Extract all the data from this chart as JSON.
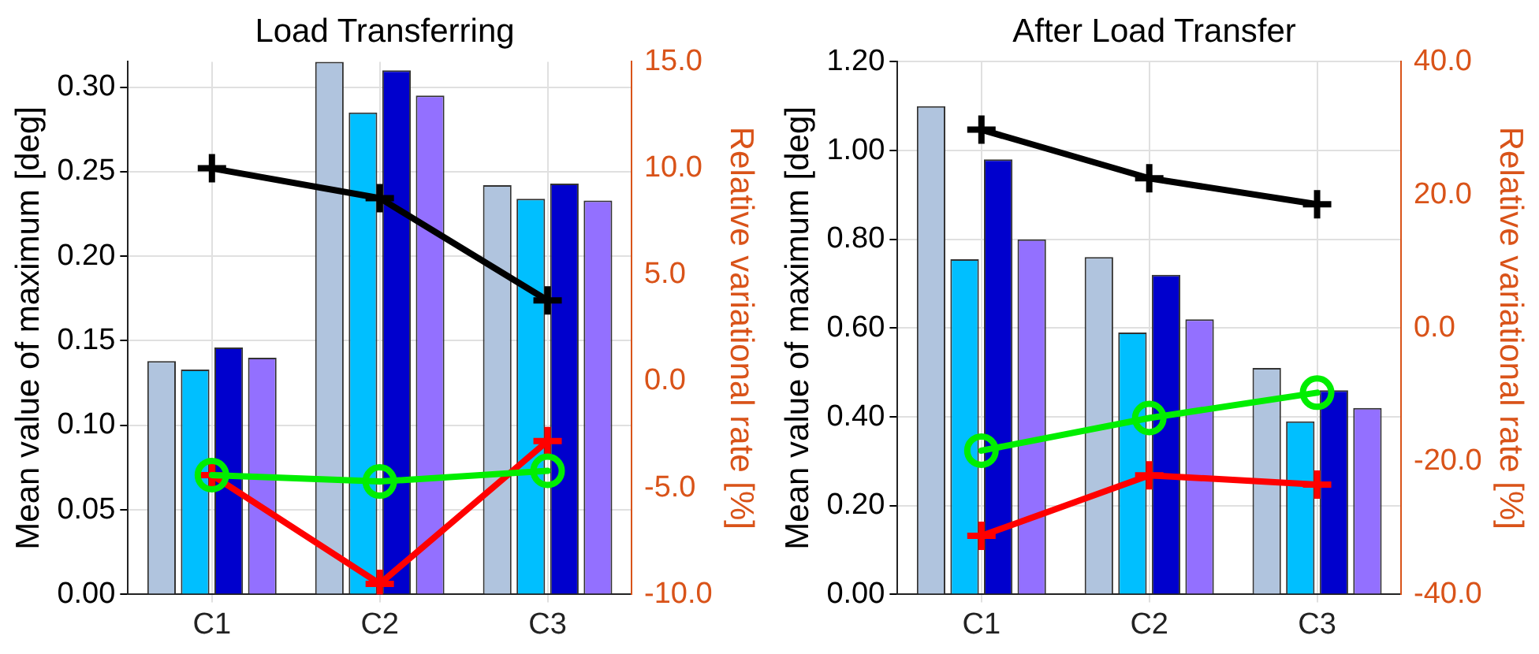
{
  "chart_data": [
    {
      "type": "bar",
      "title": "Load Transferring",
      "ylabel": "Mean value of maximum [deg]",
      "y2label": "Relative variational rate [%]",
      "categories": [
        "C1",
        "C2",
        "C3"
      ],
      "ylim": [
        0,
        0.315
      ],
      "yticks": [
        {
          "value": 0,
          "label": "0.00"
        },
        {
          "value": 0.05,
          "label": "0.05"
        },
        {
          "value": 0.1,
          "label": "0.10"
        },
        {
          "value": 0.15,
          "label": "0.15"
        },
        {
          "value": 0.2,
          "label": "0.20"
        },
        {
          "value": 0.25,
          "label": "0.25"
        },
        {
          "value": 0.3,
          "label": "0.30"
        }
      ],
      "y2lim": [
        -10,
        15
      ],
      "y2ticks": [
        {
          "value": -10,
          "label": "-10.0"
        },
        {
          "value": -5,
          "label": "-5.0"
        },
        {
          "value": 0,
          "label": "0.0"
        },
        {
          "value": 5,
          "label": "5.0"
        },
        {
          "value": 10,
          "label": "10.0"
        },
        {
          "value": 15,
          "label": "15.0"
        }
      ],
      "grid": true,
      "series": [
        {
          "color": "#b0c4de",
          "values": [
            0.138,
            0.315,
            0.242
          ]
        },
        {
          "color": "#00bfff",
          "values": [
            0.133,
            0.285,
            0.234
          ]
        },
        {
          "color": "#0000cd",
          "values": [
            0.146,
            0.31,
            0.243
          ]
        },
        {
          "color": "#9370ff",
          "values": [
            0.14,
            0.295,
            0.233
          ]
        },
        {
          "type": "line",
          "axis": "y2",
          "color": "#000000",
          "marker": "cross",
          "values": [
            10.0,
            8.6,
            3.8
          ]
        },
        {
          "type": "line",
          "axis": "y2",
          "color": "#00ee00",
          "marker": "circle",
          "values": [
            -4.4,
            -4.7,
            -4.2
          ]
        },
        {
          "type": "line",
          "axis": "y2",
          "color": "#ff0000",
          "marker": "cross",
          "values": [
            -4.4,
            -9.5,
            -2.8
          ]
        }
      ]
    },
    {
      "type": "bar",
      "title": "After Load Transfer",
      "ylabel": "Mean value of maximum [deg]",
      "y2label": "Relative variational rate [%]",
      "categories": [
        "C1",
        "C2",
        "C3"
      ],
      "ylim": [
        0,
        1.2
      ],
      "yticks": [
        {
          "value": 0,
          "label": "0.00"
        },
        {
          "value": 0.2,
          "label": "0.20"
        },
        {
          "value": 0.4,
          "label": "0.40"
        },
        {
          "value": 0.6,
          "label": "0.60"
        },
        {
          "value": 0.8,
          "label": "0.80"
        },
        {
          "value": 1,
          "label": "1.00"
        },
        {
          "value": 1.2,
          "label": "1.20"
        }
      ],
      "y2lim": [
        -40,
        40
      ],
      "y2ticks": [
        {
          "value": -40,
          "label": "-40.0"
        },
        {
          "value": -20,
          "label": "-20.0"
        },
        {
          "value": 0,
          "label": "0.0"
        },
        {
          "value": 20,
          "label": "20.0"
        },
        {
          "value": 40,
          "label": "40.0"
        }
      ],
      "grid": true,
      "series": [
        {
          "color": "#b0c4de",
          "values": [
            1.1,
            0.76,
            0.51
          ]
        },
        {
          "color": "#00bfff",
          "values": [
            0.755,
            0.59,
            0.39
          ]
        },
        {
          "color": "#0000cd",
          "values": [
            0.98,
            0.72,
            0.46
          ]
        },
        {
          "color": "#9370ff",
          "values": [
            0.8,
            0.62,
            0.42
          ]
        },
        {
          "type": "line",
          "axis": "y2",
          "color": "#000000",
          "marker": "cross",
          "values": [
            29.8,
            22.5,
            18.6
          ]
        },
        {
          "type": "line",
          "axis": "y2",
          "color": "#00ee00",
          "marker": "circle",
          "values": [
            -18.4,
            -13.5,
            -9.7
          ]
        },
        {
          "type": "line",
          "axis": "y2",
          "color": "#ff0000",
          "marker": "cross",
          "values": [
            -31.2,
            -22.1,
            -23.5
          ]
        }
      ]
    }
  ]
}
